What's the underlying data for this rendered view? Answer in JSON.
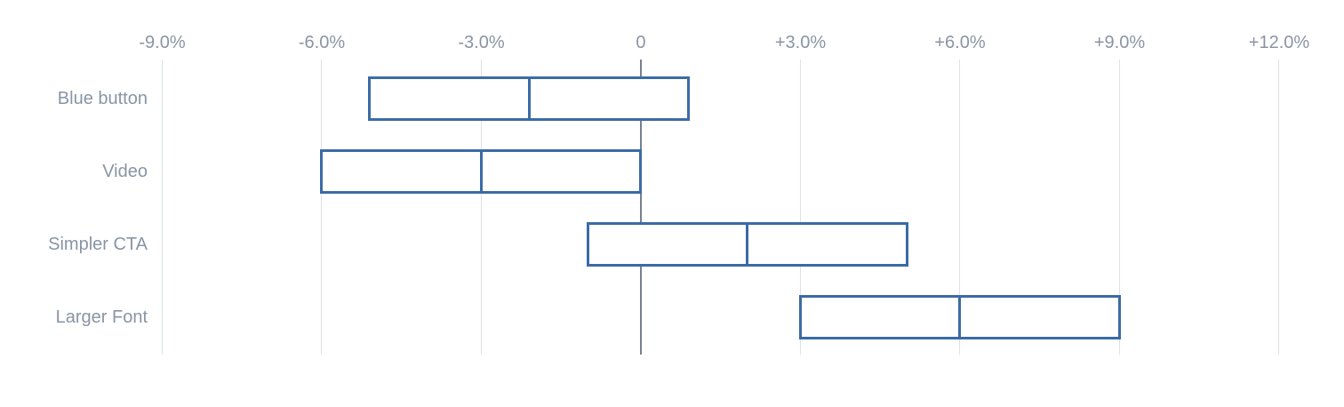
{
  "chart_data": {
    "type": "bar",
    "subtype": "horizontal-range-interval",
    "title": "",
    "categories": [
      "Blue button",
      "Video",
      "Simpler CTA",
      "Larger Font"
    ],
    "series": [
      {
        "name": "low",
        "values": [
          -5.1,
          -6.0,
          -1.0,
          3.0
        ]
      },
      {
        "name": "mid",
        "values": [
          -2.1,
          -3.0,
          2.0,
          6.0
        ]
      },
      {
        "name": "high",
        "values": [
          0.9,
          0.0,
          5.0,
          9.0
        ]
      }
    ],
    "x_ticks": [
      -9,
      -6,
      -3,
      0,
      3,
      6,
      9,
      12
    ],
    "x_tick_labels": [
      "-9.0%",
      "-6.0%",
      "-3.0%",
      "0",
      "+3.0%",
      "+6.0%",
      "+9.0%",
      "+12.0%"
    ],
    "xlim": [
      -9,
      12
    ],
    "xlabel": "",
    "ylabel": "",
    "grid": true,
    "legend": false
  },
  "colors": {
    "bar_border": "#3A6BA6",
    "bar_fill": "#FFFFFF",
    "gridline": "#DEE1E5",
    "zero_line": "#76808E",
    "text": "#8A94A4",
    "background": "#FFFFFF"
  }
}
